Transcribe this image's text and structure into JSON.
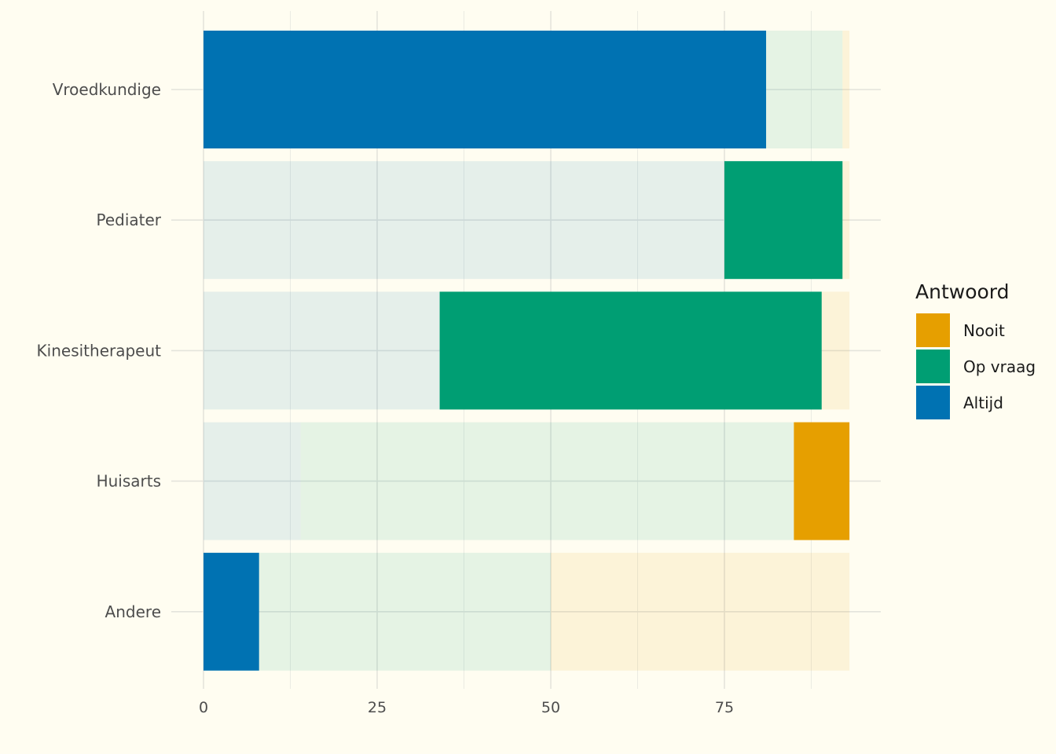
{
  "chart_data": {
    "type": "bar",
    "orientation": "horizontal",
    "stacked": true,
    "categories": [
      "Vroedkundige",
      "Pediater",
      "Kinesitherapeut",
      "Huisarts",
      "Andere"
    ],
    "x_ticks": [
      "0",
      "25",
      "50",
      "75"
    ],
    "xlim": [
      0,
      93
    ],
    "grid": true,
    "legend_position": "right",
    "legend": {
      "title": "Antwoord",
      "entries": [
        {
          "label": "Nooit",
          "color": "#E69F00"
        },
        {
          "label": "Op vraag",
          "color": "#009E73"
        },
        {
          "label": "Altijd",
          "color": "#0072B2"
        }
      ]
    },
    "highlight_note": "Each row highlights one answer at full opacity; other segments faded",
    "series": [
      {
        "name": "Altijd",
        "color": "#0072B2",
        "values": [
          81,
          75,
          34,
          14,
          8
        ],
        "highlighted": [
          true,
          false,
          false,
          false,
          true
        ]
      },
      {
        "name": "Op vraag",
        "color": "#009E73",
        "values": [
          11,
          17,
          55,
          71,
          42
        ],
        "highlighted": [
          false,
          true,
          true,
          false,
          false
        ]
      },
      {
        "name": "Nooit",
        "color": "#E69F00",
        "values": [
          1,
          1,
          4,
          8,
          43
        ],
        "highlighted": [
          false,
          false,
          false,
          true,
          false
        ]
      }
    ]
  }
}
